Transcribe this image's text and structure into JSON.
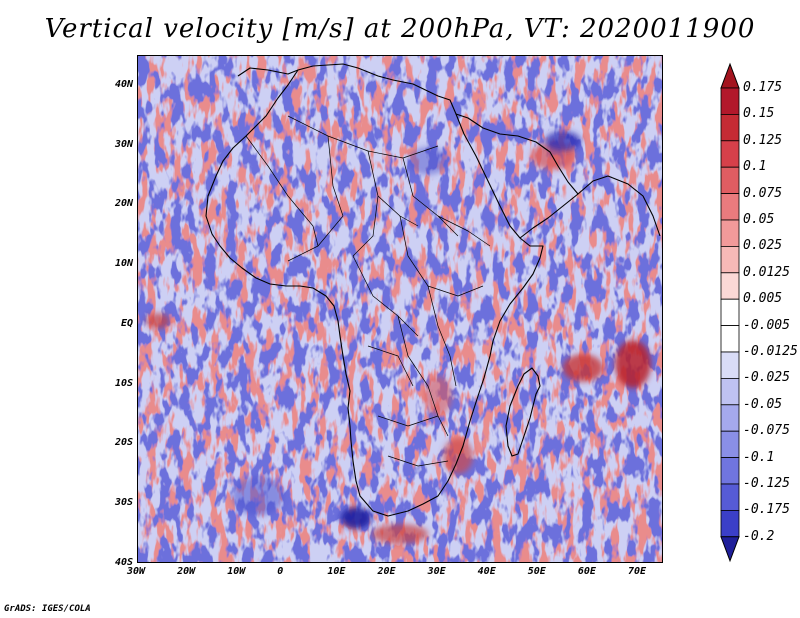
{
  "title": "Vertical velocity [m/s] at 200hPa, VT: 2020011900",
  "footer": "GrADS: IGES/COLA",
  "map": {
    "lon_range": [
      -30,
      75
    ],
    "lat_range": [
      -40,
      45
    ],
    "lat_ticks": [
      {
        "value": 40,
        "label": "40N"
      },
      {
        "value": 30,
        "label": "30N"
      },
      {
        "value": 20,
        "label": "20N"
      },
      {
        "value": 10,
        "label": "10N"
      },
      {
        "value": 0,
        "label": "EQ"
      },
      {
        "value": -10,
        "label": "10S"
      },
      {
        "value": -20,
        "label": "20S"
      },
      {
        "value": -30,
        "label": "30S"
      },
      {
        "value": -40,
        "label": "40S"
      }
    ],
    "lon_ticks": [
      {
        "value": -30,
        "label": "30W"
      },
      {
        "value": -20,
        "label": "20W"
      },
      {
        "value": -10,
        "label": "10W"
      },
      {
        "value": 0,
        "label": "0"
      },
      {
        "value": 10,
        "label": "10E"
      },
      {
        "value": 20,
        "label": "20E"
      },
      {
        "value": 30,
        "label": "30E"
      },
      {
        "value": 40,
        "label": "40E"
      },
      {
        "value": 50,
        "label": "50E"
      },
      {
        "value": 60,
        "label": "60E"
      },
      {
        "value": 70,
        "label": "70E"
      }
    ]
  },
  "colorbar": {
    "levels": [
      {
        "label": "0.175",
        "color": "#b2182b"
      },
      {
        "label": "0.15",
        "color": "#c52b34"
      },
      {
        "label": "0.125",
        "color": "#d6404a"
      },
      {
        "label": "0.1",
        "color": "#e05d62"
      },
      {
        "label": "0.075",
        "color": "#ea7b7e"
      },
      {
        "label": "0.05",
        "color": "#f29a9a"
      },
      {
        "label": "0.025",
        "color": "#f7b9b7"
      },
      {
        "label": "0.0125",
        "color": "#fbd8d6"
      },
      {
        "label": "0.005",
        "color": "#ffffff"
      },
      {
        "label": "-0.005",
        "color": "#ffffff"
      },
      {
        "label": "-0.0125",
        "color": "#d9dcf7"
      },
      {
        "label": "-0.025",
        "color": "#bfc2f2"
      },
      {
        "label": "-0.05",
        "color": "#a5a9ed"
      },
      {
        "label": "-0.075",
        "color": "#8a8fe6"
      },
      {
        "label": "-0.1",
        "color": "#7075df"
      },
      {
        "label": "-0.125",
        "color": "#565bd6"
      },
      {
        "label": "-0.175",
        "color": "#3b3fc8"
      },
      {
        "label": "-0.2",
        "color": "#2a2ba8"
      }
    ],
    "over_color": "#a3141f",
    "under_color": "#1f1f9a"
  }
}
